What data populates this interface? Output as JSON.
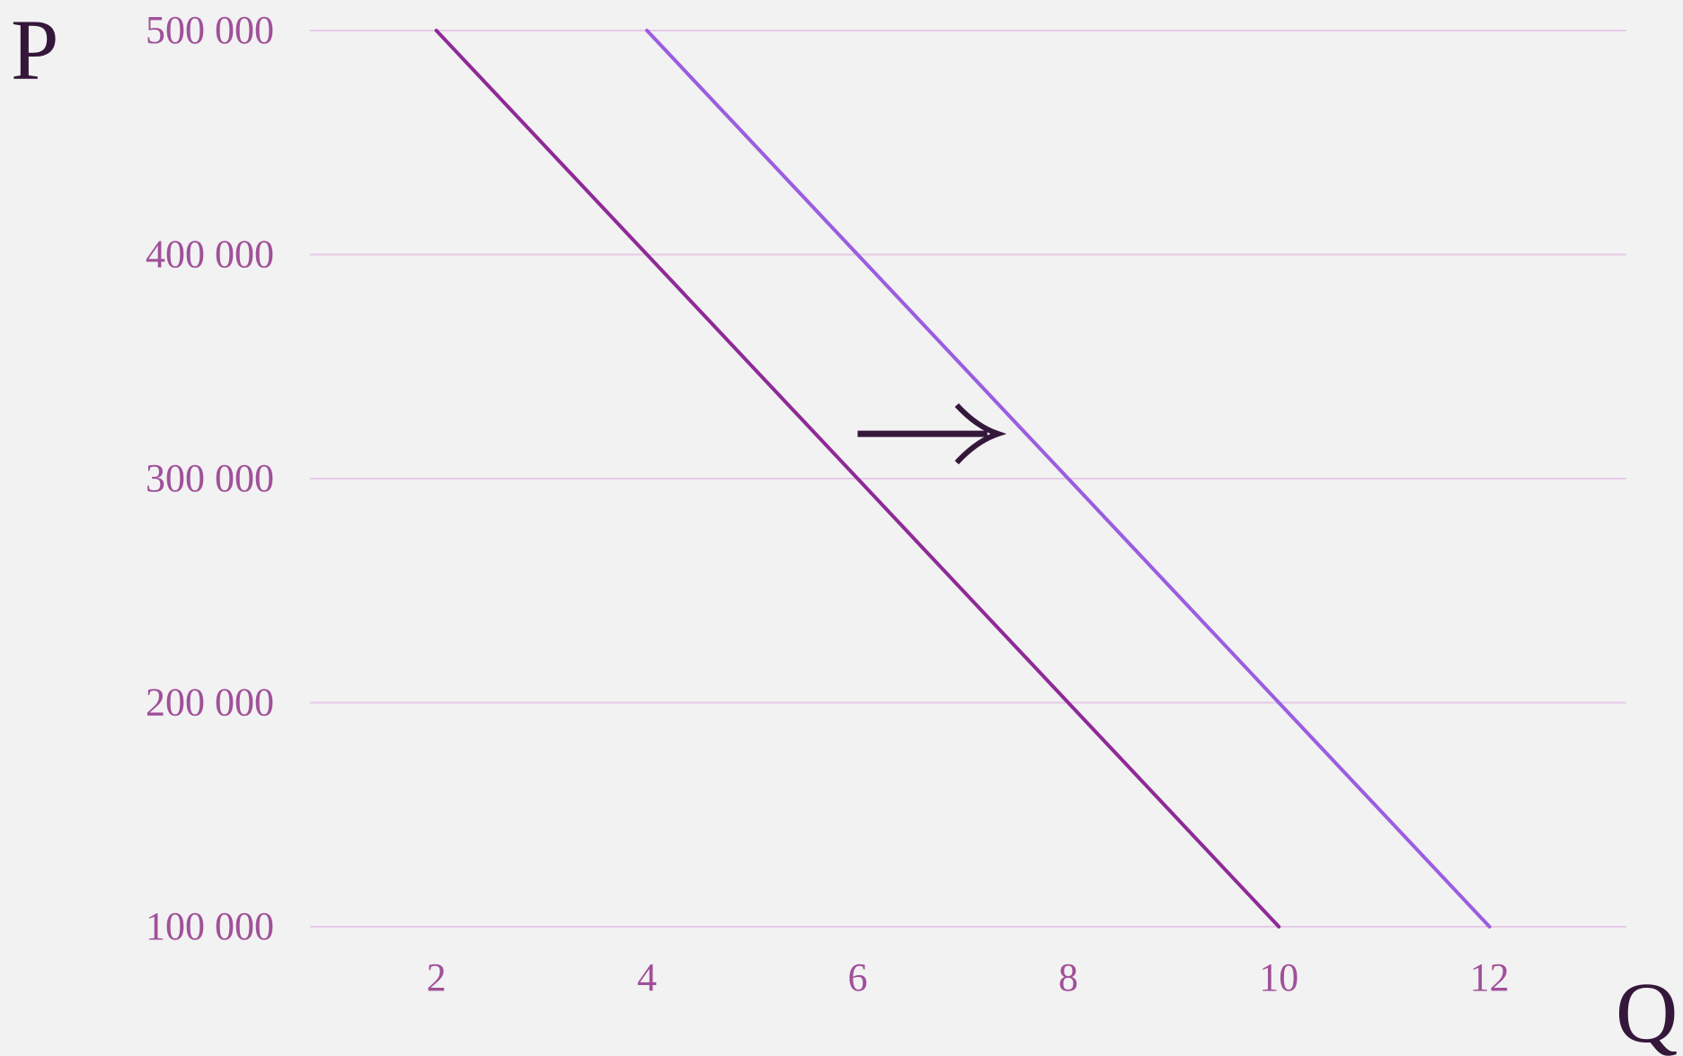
{
  "chart_data": {
    "type": "line",
    "title": "",
    "xlabel": "Q",
    "ylabel": "P",
    "xlim": [
      0.8,
      13.3
    ],
    "ylim": [
      100000,
      500000
    ],
    "x_ticks": [
      2,
      4,
      6,
      8,
      10,
      12
    ],
    "x_tick_labels": [
      "2",
      "4",
      "6",
      "8",
      "10",
      "12"
    ],
    "y_ticks": [
      100000,
      200000,
      300000,
      400000,
      500000
    ],
    "y_tick_labels": [
      "100 000",
      "200 000",
      "300 000",
      "400 000",
      "500 000"
    ],
    "grid": "horizontal",
    "legend": "none",
    "series": [
      {
        "x": [
          2,
          10
        ],
        "y": [
          500000,
          100000
        ],
        "color": "#8e2a96"
      },
      {
        "x": [
          4,
          12
        ],
        "y": [
          500000,
          100000
        ],
        "color": "#9b5de0"
      }
    ],
    "annotations": [
      {
        "type": "arrow",
        "direction": "right",
        "x": [
          6,
          7.3
        ],
        "y": 320000,
        "color": "#34173a"
      }
    ],
    "colors": {
      "background": "#f2f2f2",
      "grid": "#e6cbe6",
      "tick_text": "#a0509a",
      "axis_label_text": "#34173a"
    }
  }
}
